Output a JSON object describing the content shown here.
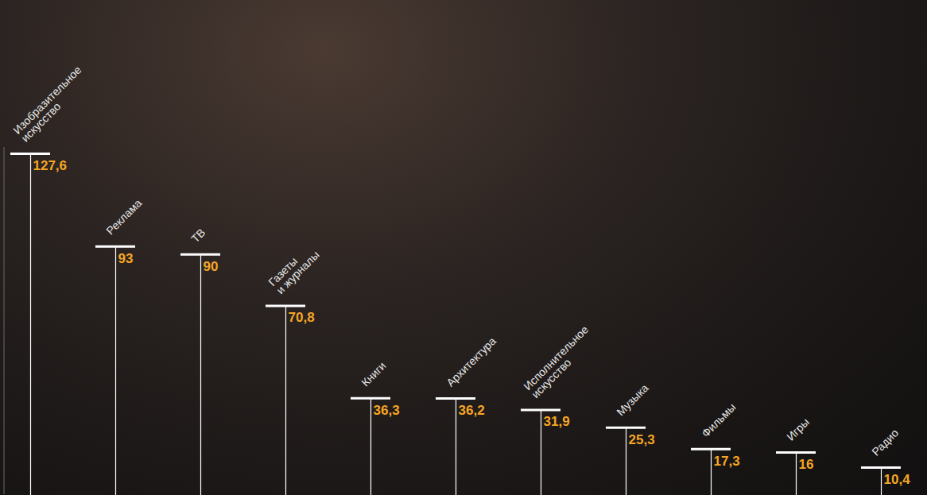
{
  "chart_data": {
    "type": "lollipop",
    "categories": [
      "Изобразительное искусство",
      "Реклама",
      "ТВ",
      "Газеты и журналы",
      "Книги",
      "Архитектура",
      "Исполнительное искусство",
      "Музыка",
      "Фильмы",
      "Игры",
      "Радио"
    ],
    "values": [
      127.6,
      93,
      90,
      70.8,
      36.3,
      36.2,
      31.9,
      25.3,
      17.3,
      16,
      10.4
    ],
    "value_labels": [
      "127,6",
      "93",
      "90",
      "70,8",
      "36,3",
      "36,2",
      "31,9",
      "25,3",
      "17,3",
      "16",
      "10,4"
    ],
    "color": "#ffffff",
    "ylim": [
      0,
      130
    ],
    "grid": false,
    "data_labels": true,
    "tick_labels": false
  }
}
